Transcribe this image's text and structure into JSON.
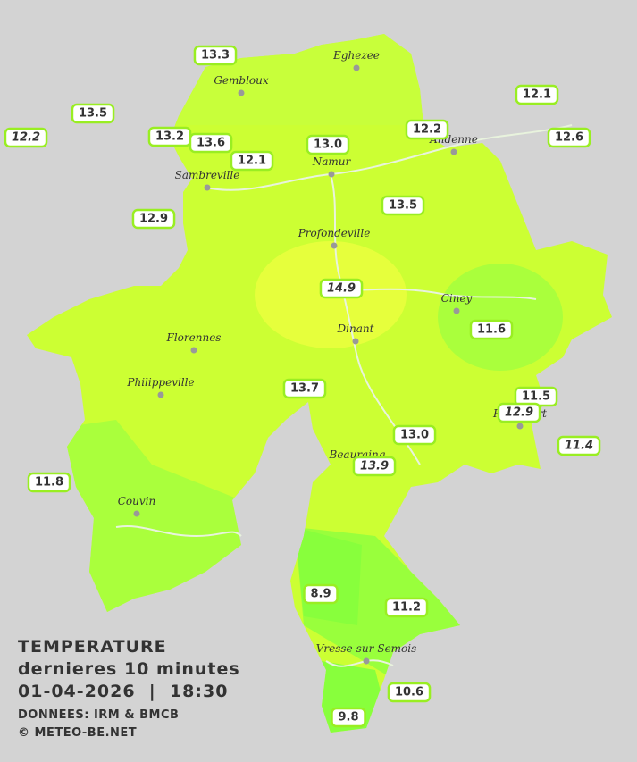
{
  "cities": [
    "Eghezee",
    "Gembloux",
    "Andenne",
    "Namur",
    "Sambreville",
    "Profondeville",
    "Ciney",
    "Dinant",
    "Florennes",
    "Philippeville",
    "Rochefort",
    "Beauraing",
    "Couvin",
    "Vresse-sur-Semois"
  ],
  "stations": [
    {
      "label": "13.3",
      "italic": false
    },
    {
      "label": "13.5",
      "italic": false
    },
    {
      "label": "12.2",
      "italic": true
    },
    {
      "label": "13.2",
      "italic": false
    },
    {
      "label": "13.6",
      "italic": false
    },
    {
      "label": "12.1",
      "italic": false
    },
    {
      "label": "13.0",
      "italic": false
    },
    {
      "label": "12.2",
      "italic": false
    },
    {
      "label": "12.1",
      "italic": false
    },
    {
      "label": "12.6",
      "italic": false
    },
    {
      "label": "12.9",
      "italic": false
    },
    {
      "label": "13.5",
      "italic": false
    },
    {
      "label": "14.9",
      "italic": true
    },
    {
      "label": "11.6",
      "italic": false
    },
    {
      "label": "13.7",
      "italic": false
    },
    {
      "label": "11.5",
      "italic": false
    },
    {
      "label": "12.9",
      "italic": true
    },
    {
      "label": "13.0",
      "italic": false
    },
    {
      "label": "13.9",
      "italic": true
    },
    {
      "label": "11.4",
      "italic": true
    },
    {
      "label": "11.8",
      "italic": false
    },
    {
      "label": "8.9",
      "italic": false
    },
    {
      "label": "11.2",
      "italic": false
    },
    {
      "label": "10.6",
      "italic": false
    },
    {
      "label": "9.8",
      "italic": false
    }
  ],
  "footer": {
    "title": "TEMPERATURE",
    "subtitle": "dernieres 10 minutes",
    "datetime": "01-04-2026  |  18:30",
    "source": "DONNEES: IRM & BMCB",
    "credit": "© METEO-BE.NET"
  }
}
